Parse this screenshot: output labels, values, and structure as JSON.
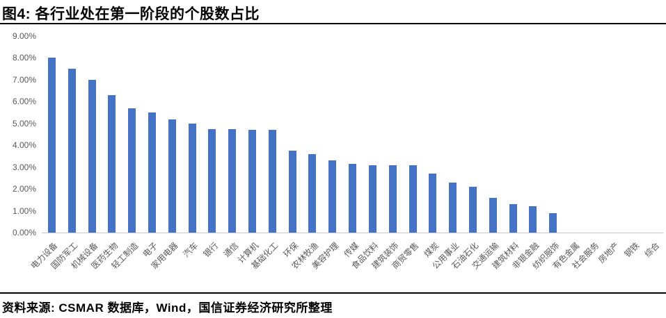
{
  "figure": {
    "title": "图4: 各行业处在第一阶段的个股数占比",
    "source": "资料来源: CSMAR 数据库，Wind，国信证券经济研究所整理"
  },
  "colors": {
    "bar": "#4472c4",
    "axis_line": "#c8c8c8",
    "axis_label": "#595959",
    "title_text": "#000000"
  },
  "chart_data": {
    "type": "bar",
    "title": "各行业处在第一阶段的个股数占比",
    "xlabel": "",
    "ylabel": "",
    "unit": "%",
    "ylim": [
      0,
      9
    ],
    "ytick_step": 1,
    "ytick_labels": [
      "0.00%",
      "1.00%",
      "2.00%",
      "3.00%",
      "4.00%",
      "5.00%",
      "6.00%",
      "7.00%",
      "8.00%",
      "9.00%"
    ],
    "grid": false,
    "legend": false,
    "categories": [
      "电力设备",
      "国防军工",
      "机械设备",
      "医药生物",
      "轻工制造",
      "电子",
      "家用电器",
      "汽车",
      "银行",
      "通信",
      "计算机",
      "基础化工",
      "环保",
      "农林牧渔",
      "美容护理",
      "传媒",
      "食品饮料",
      "建筑装饰",
      "商贸零售",
      "煤炭",
      "公用事业",
      "石油石化",
      "交通运输",
      "建筑材料",
      "非银金融",
      "纺织服饰",
      "有色金属",
      "社会服务",
      "房地产",
      "钢铁",
      "综合"
    ],
    "values": [
      8.0,
      7.5,
      7.0,
      6.3,
      5.7,
      5.5,
      5.2,
      5.0,
      4.75,
      4.75,
      4.7,
      4.7,
      3.75,
      3.6,
      3.3,
      3.15,
      3.1,
      3.1,
      3.1,
      2.7,
      2.3,
      2.1,
      1.6,
      1.3,
      1.2,
      0.9,
      0,
      0,
      0,
      0,
      0
    ]
  }
}
